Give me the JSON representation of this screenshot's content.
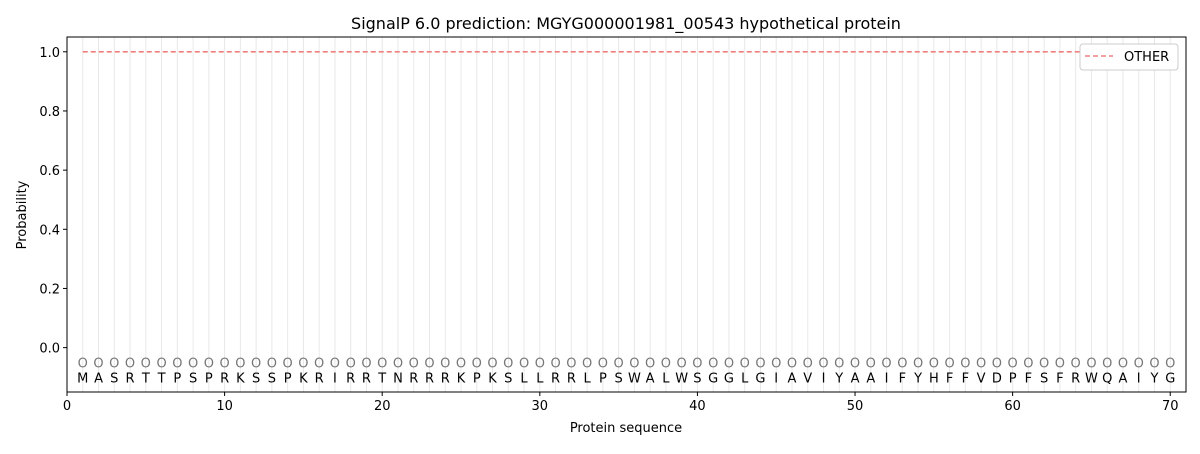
{
  "chart_data": {
    "type": "line",
    "title": "SignalP 6.0 prediction: MGYG000001981_00543 hypothetical protein",
    "xlabel": "Protein sequence",
    "ylabel": "Probability",
    "xlim": [
      0,
      71
    ],
    "ylim": [
      -0.15,
      1.05
    ],
    "xticks": [
      0,
      10,
      20,
      30,
      40,
      50,
      60,
      70
    ],
    "yticks": [
      0.0,
      0.2,
      0.4,
      0.6,
      0.8,
      1.0
    ],
    "ytick_labels": [
      "0.0",
      "0.2",
      "0.4",
      "0.6",
      "0.8",
      "1.0"
    ],
    "sequence": "MASRTTPSPRKSSPKRIRRTNRRRKPKSLLRRLPSWALWSGGLGIAVIYAAIFYHFFVDPFSFRWQAIYG",
    "predicted_label_per_residue": "O",
    "series": [
      {
        "name": "OTHER",
        "color": "#f08080",
        "style": "dashed",
        "x_start": 1,
        "x_end": 70,
        "values_constant": 1.0
      }
    ],
    "legend": {
      "position": "top-right",
      "entries": [
        "OTHER"
      ]
    },
    "grid": "vertical lines at each residue"
  }
}
